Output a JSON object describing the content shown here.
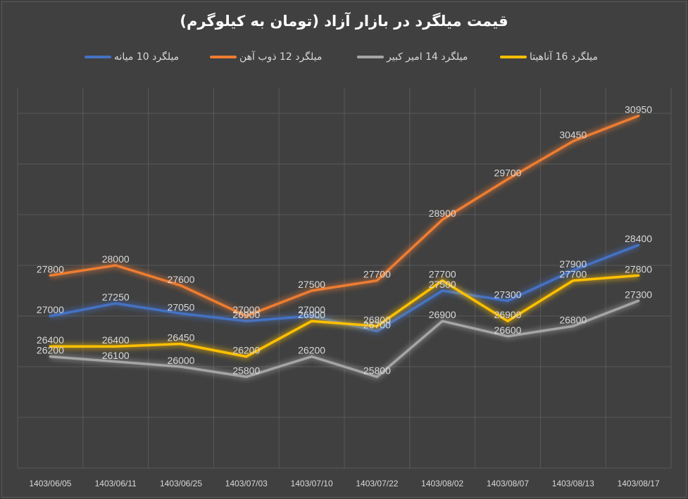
{
  "chart_data": {
    "type": "line",
    "title": "قیمت میلگرد در بازار آزاد (تومان به کیلوگرم)",
    "categories": [
      "1403/06/05",
      "1403/06/11",
      "1403/06/25",
      "1403/07/03",
      "1403/07/10",
      "1403/07/22",
      "1403/08/02",
      "1403/08/07",
      "1403/08/13",
      "1403/08/17"
    ],
    "series": [
      {
        "name": "میلگرد 10 میانه",
        "color": "#4472c4",
        "values": [
          27000,
          27250,
          27050,
          26900,
          27000,
          26700,
          27500,
          27300,
          27900,
          28400
        ]
      },
      {
        "name": "میلگرد 12 ذوب آهن",
        "color": "#ed7d31",
        "values": [
          27800,
          28000,
          27600,
          27000,
          27500,
          27700,
          28900,
          29700,
          30450,
          30950
        ]
      },
      {
        "name": "میلگرد 14 امیر کبیر",
        "color": "#a5a5a5",
        "values": [
          26200,
          26100,
          26000,
          25800,
          26200,
          25800,
          26900,
          26600,
          26800,
          27300
        ]
      },
      {
        "name": "میلگرد 16 آناهیتا",
        "color": "#ffc000",
        "values": [
          26400,
          26400,
          26450,
          26200,
          26900,
          26800,
          27700,
          26900,
          27700,
          27800
        ]
      }
    ],
    "ylim": [
      24000,
      31500
    ],
    "grid": true,
    "legend_position": "top"
  }
}
